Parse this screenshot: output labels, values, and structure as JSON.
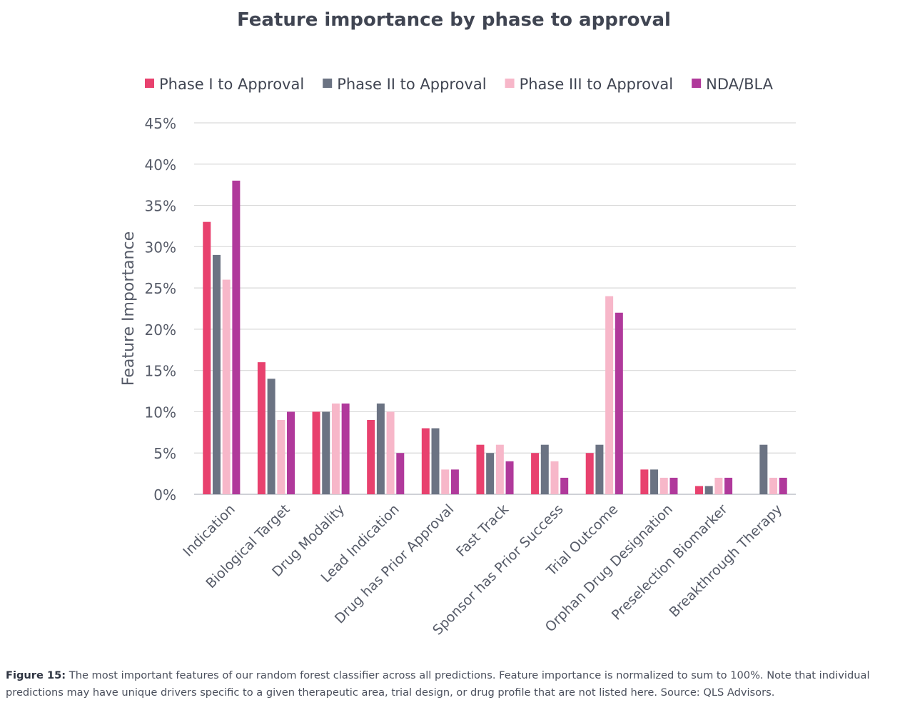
{
  "chart_data": {
    "type": "bar",
    "title": "Feature importance by phase to approval",
    "ylabel": "Feature Importance",
    "xlabel": "",
    "ylim": [
      0,
      45
    ],
    "y_ticks": [
      "0%",
      "5%",
      "10%",
      "15%",
      "20%",
      "25%",
      "30%",
      "35%",
      "40%",
      "45%"
    ],
    "grid": true,
    "legend_position": "top",
    "categories": [
      "Indication",
      "Biological Target",
      "Drug Modality",
      "Lead Indication",
      "Drug has Prior Approval",
      "Fast Track",
      "Sponsor has Prior Success",
      "Trial Outcome",
      "Orphan Drug Designation",
      "Preselection Biomarker",
      "Breakthrough Therapy"
    ],
    "series": [
      {
        "name": "Phase I to Approval",
        "color": "#e8416e",
        "values": [
          33,
          16,
          10,
          9,
          8,
          6,
          5,
          5,
          3,
          1,
          0
        ]
      },
      {
        "name": "Phase II to Approval",
        "color": "#6b7383",
        "values": [
          29,
          14,
          10,
          11,
          8,
          5,
          6,
          6,
          3,
          1,
          6
        ]
      },
      {
        "name": "Phase III to Approval",
        "color": "#f7b7c9",
        "values": [
          26,
          9,
          11,
          10,
          3,
          6,
          4,
          24,
          2,
          2,
          2
        ]
      },
      {
        "name": "NDA/BLA",
        "color": "#b0399b",
        "values": [
          38,
          10,
          11,
          5,
          3,
          4,
          2,
          22,
          2,
          2,
          2
        ]
      }
    ]
  },
  "caption": {
    "label": "Figure 15:",
    "text": " The most important features of our random forest classifier across all predictions. Feature importance is normalized to sum to 100%. Note that individual predictions may have unique drivers specific to a given therapeutic area, trial design, or drug profile that are not listed here. Source: QLS Advisors."
  }
}
